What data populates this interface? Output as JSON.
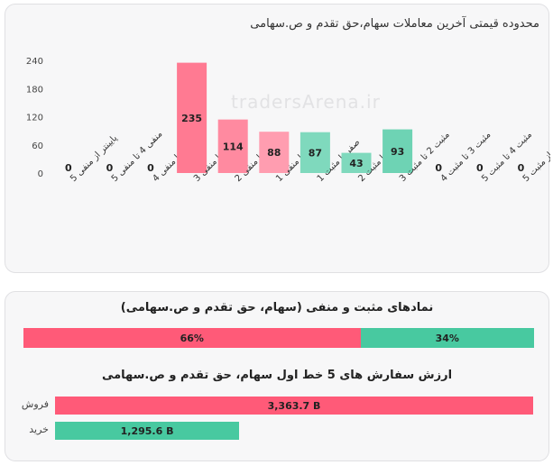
{
  "colors": {
    "negative": "#ff5a78",
    "negative_light": "#ff8aa0",
    "positive": "#48c9a0",
    "positive_light": "#7fd9bd"
  },
  "card1": {
    "title": "محدوده قیمتی آخرین معاملات سهام،حق تقدم و ص.سهامی",
    "watermark": "tradersArena.ir"
  },
  "chart_data": [
    {
      "type": "bar",
      "title": "محدوده قیمتی آخرین معاملات سهام،حق تقدم و ص.سهامی",
      "categories": [
        "پایینتر از منفی 5",
        "منفی 4 تا منفی 5",
        "منفی 3 تا منفی 4",
        "منفی 2 تا منفی 3",
        "منفی 1 تا منفی 2",
        "صفر تا منفی 1",
        "صفر تا مثبت 1",
        "مثبت 1 تا مثبت 2",
        "مثبت 2 تا مثبت 3",
        "مثبت 3 تا مثبت 4",
        "مثبت 4 تا مثبت 5",
        "بالاتر از مثبت 5"
      ],
      "values": [
        0,
        0,
        0,
        235,
        114,
        88,
        87,
        43,
        93,
        0,
        0,
        0
      ],
      "bar_colors": [
        "#ff5a78",
        "#ff5a78",
        "#ff5a78",
        "#ff7a92",
        "#ff8aa0",
        "#ff9db0",
        "#7fd9bd",
        "#7fd9bd",
        "#6ed3b4",
        "#48c9a0",
        "#48c9a0",
        "#48c9a0"
      ],
      "yticks": [
        "0",
        "60",
        "120",
        "180",
        "240"
      ],
      "ylim": [
        0,
        240
      ],
      "grid": false
    },
    {
      "type": "bar",
      "title": "نمادهای مثبت و منفی (سهام، حق تقدم و ص.سهامی)",
      "categories": [
        "منفی",
        "مثبت"
      ],
      "values": [
        66,
        34
      ],
      "labels": [
        "66%",
        "34%"
      ]
    },
    {
      "type": "bar",
      "title": "ارزش سفارش های 5 خط اول سهام، حق تقدم و ص.سهامی",
      "categories": [
        "فروش",
        "خرید"
      ],
      "values": [
        3363.7,
        1295.6
      ],
      "labels": [
        "3,363.7 B",
        "1,295.6 B"
      ]
    }
  ],
  "card2": {
    "title1": "نمادهای مثبت و منفی (سهام، حق تقدم و ص.سهامی)",
    "neg_label": "66%",
    "pos_label": "34%",
    "title2": "ارزش سفارش های 5 خط اول سهام، حق تقدم و ص.سهامی",
    "sell_label": "فروش",
    "sell_value": "3,363.7 B",
    "buy_label": "خرید",
    "buy_value": "1,295.6 B"
  }
}
